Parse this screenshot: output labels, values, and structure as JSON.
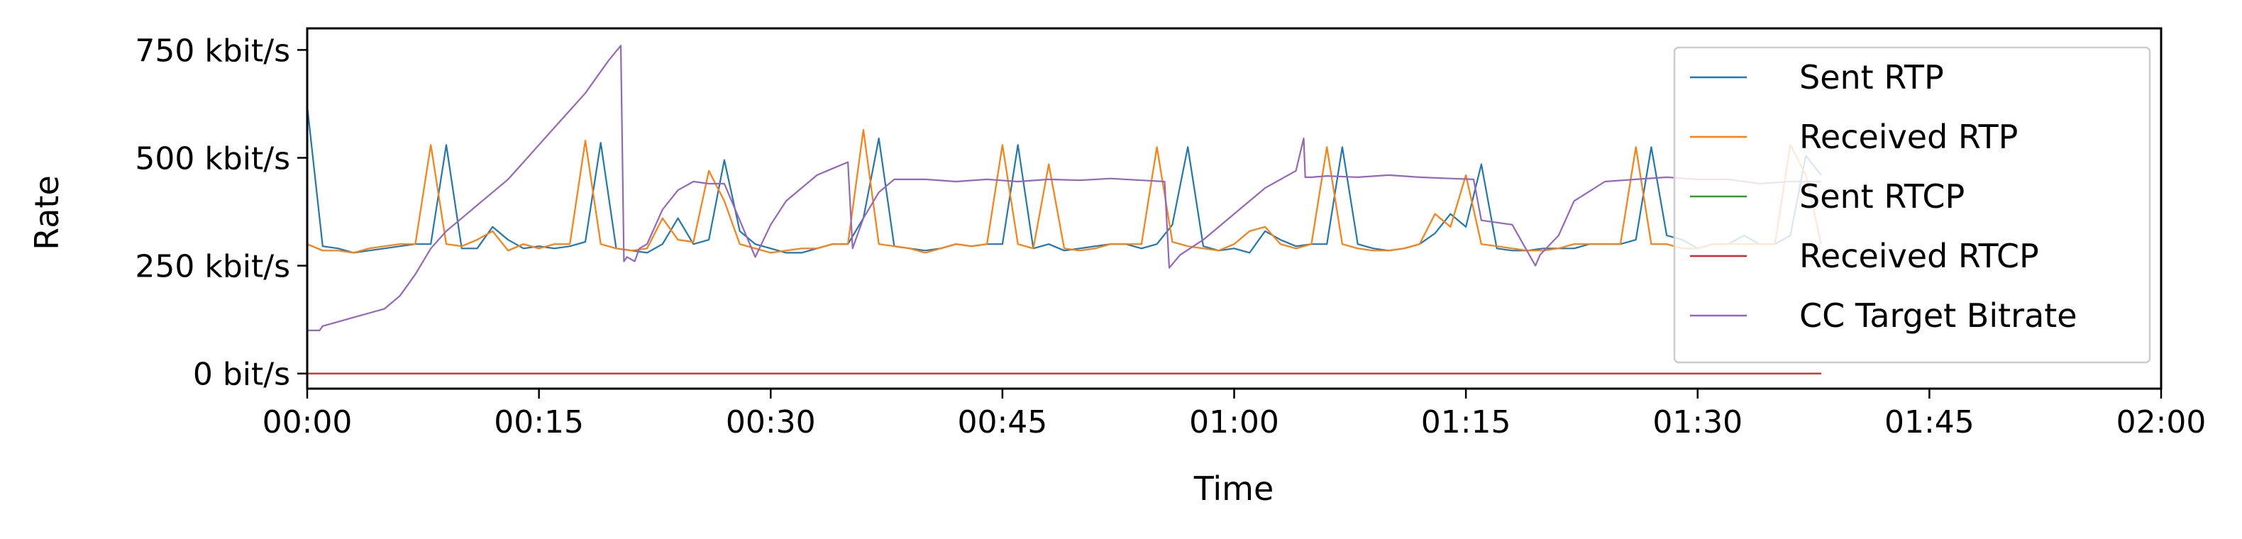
{
  "chart_data": {
    "type": "line",
    "title": "",
    "xlabel": "Time",
    "ylabel": "Rate",
    "xlim": [
      0,
      120
    ],
    "ylim": [
      -35,
      800
    ],
    "x_unit": "seconds",
    "y_unit": "kbit/s",
    "x_ticks": [
      {
        "value": 0,
        "label": "00:00"
      },
      {
        "value": 15,
        "label": "00:15"
      },
      {
        "value": 30,
        "label": "00:30"
      },
      {
        "value": 45,
        "label": "00:45"
      },
      {
        "value": 60,
        "label": "01:00"
      },
      {
        "value": 75,
        "label": "01:15"
      },
      {
        "value": 90,
        "label": "01:30"
      },
      {
        "value": 105,
        "label": "01:45"
      },
      {
        "value": 120,
        "label": "02:00"
      }
    ],
    "y_ticks": [
      {
        "value": 0,
        "label": "0 bit/s"
      },
      {
        "value": 250,
        "label": "250 kbit/s"
      },
      {
        "value": 500,
        "label": "500 kbit/s"
      },
      {
        "value": 750,
        "label": "750 kbit/s"
      }
    ],
    "grid": false,
    "legend_position": "top-right",
    "series": [
      {
        "name": "Sent RTP",
        "color": "#1f77b4",
        "x": [
          0,
          1,
          2,
          3,
          4,
          5,
          6,
          7,
          8,
          9,
          10,
          11,
          12,
          13,
          14,
          15,
          16,
          17,
          18,
          19,
          20,
          21,
          22,
          23,
          24,
          25,
          26,
          27,
          28,
          29,
          30,
          31,
          32,
          33,
          34,
          35,
          36,
          37,
          38,
          39,
          40,
          41,
          42,
          43,
          44,
          45,
          46,
          47,
          48,
          49,
          50,
          51,
          52,
          53,
          54,
          55,
          56,
          57,
          58,
          59,
          60,
          61,
          62,
          63,
          64,
          65,
          66,
          67,
          68,
          69,
          70,
          71,
          72,
          73,
          74,
          75,
          76,
          77,
          78,
          79,
          80,
          81,
          82,
          83,
          84,
          85,
          86,
          87,
          88,
          89,
          90,
          91,
          92,
          93,
          94,
          95,
          96,
          97,
          98
        ],
        "y": [
          620,
          295,
          290,
          280,
          285,
          290,
          295,
          300,
          300,
          530,
          290,
          290,
          340,
          310,
          290,
          295,
          290,
          295,
          305,
          535,
          290,
          285,
          280,
          300,
          360,
          300,
          310,
          495,
          330,
          300,
          290,
          280,
          280,
          290,
          300,
          300,
          360,
          545,
          295,
          290,
          285,
          290,
          300,
          295,
          300,
          300,
          530,
          290,
          300,
          285,
          290,
          295,
          300,
          300,
          290,
          300,
          345,
          525,
          295,
          285,
          290,
          280,
          330,
          310,
          295,
          300,
          300,
          525,
          300,
          290,
          285,
          290,
          300,
          325,
          370,
          340,
          485,
          290,
          285,
          285,
          290,
          290,
          290,
          300,
          300,
          300,
          310,
          525,
          320,
          310,
          290,
          300,
          300,
          320,
          300,
          300,
          320,
          505,
          460
        ]
      },
      {
        "name": "Received RTP",
        "color": "#ff7f0e",
        "x": [
          0,
          1,
          2,
          3,
          4,
          5,
          6,
          7,
          8,
          9,
          10,
          11,
          12,
          13,
          14,
          15,
          16,
          17,
          18,
          19,
          20,
          21,
          22,
          23,
          24,
          25,
          26,
          27,
          28,
          29,
          30,
          31,
          32,
          33,
          34,
          35,
          36,
          37,
          38,
          39,
          40,
          41,
          42,
          43,
          44,
          45,
          46,
          47,
          48,
          49,
          50,
          51,
          52,
          53,
          54,
          55,
          56,
          57,
          58,
          59,
          60,
          61,
          62,
          63,
          64,
          65,
          66,
          67,
          68,
          69,
          70,
          71,
          72,
          73,
          74,
          75,
          76,
          77,
          78,
          79,
          80,
          81,
          82,
          83,
          84,
          85,
          86,
          87,
          88,
          89,
          90,
          91,
          92,
          93,
          94,
          95,
          96,
          97,
          98
        ],
        "y": [
          300,
          285,
          285,
          280,
          290,
          295,
          300,
          300,
          530,
          300,
          295,
          310,
          330,
          285,
          300,
          290,
          300,
          300,
          540,
          300,
          290,
          285,
          290,
          360,
          310,
          305,
          470,
          400,
          300,
          290,
          280,
          285,
          290,
          290,
          300,
          300,
          565,
          300,
          295,
          290,
          280,
          290,
          300,
          295,
          300,
          530,
          300,
          290,
          485,
          290,
          285,
          290,
          300,
          300,
          300,
          525,
          305,
          295,
          290,
          285,
          300,
          330,
          340,
          300,
          290,
          300,
          525,
          300,
          290,
          285,
          285,
          290,
          300,
          370,
          340,
          460,
          300,
          295,
          290,
          285,
          285,
          290,
          300,
          300,
          300,
          300,
          525,
          300,
          300,
          290,
          290,
          300,
          300,
          300,
          300,
          300,
          530,
          460,
          300
        ]
      },
      {
        "name": "Sent RTCP",
        "color": "#2ca02c",
        "x": [
          0,
          98
        ],
        "y": [
          0,
          0
        ]
      },
      {
        "name": "Received RTCP",
        "color": "#d62728",
        "x": [
          0,
          98
        ],
        "y": [
          0,
          0
        ]
      },
      {
        "name": "CC Target Bitrate",
        "color": "#9467bd",
        "x": [
          0,
          0.8,
          1,
          2,
          3,
          4,
          5,
          6,
          7,
          8,
          9,
          10,
          11,
          12,
          13,
          14,
          15,
          16,
          17,
          18,
          19,
          19.5,
          20.3,
          20.5,
          20.7,
          21.2,
          21.5,
          22,
          23,
          24,
          25,
          26,
          27,
          28,
          29,
          30,
          31,
          32,
          33,
          34,
          35,
          35.3,
          35.5,
          36,
          37,
          38,
          40,
          42,
          44,
          46,
          48,
          50,
          52,
          54,
          55.5,
          55.8,
          56.5,
          58,
          60,
          62,
          64,
          64.5,
          64.6,
          65,
          66,
          68,
          70,
          72,
          74,
          75.5,
          76,
          78,
          79.5,
          79.8,
          81,
          82,
          84,
          86,
          88,
          90,
          92,
          94,
          96,
          98
        ],
        "y": [
          100,
          100,
          110,
          120,
          130,
          140,
          150,
          180,
          230,
          290,
          330,
          360,
          390,
          420,
          450,
          490,
          530,
          570,
          610,
          650,
          700,
          725,
          760,
          260,
          270,
          260,
          290,
          300,
          380,
          425,
          445,
          440,
          440,
          355,
          270,
          345,
          400,
          430,
          460,
          475,
          490,
          290,
          310,
          360,
          420,
          450,
          450,
          445,
          450,
          445,
          450,
          448,
          452,
          448,
          445,
          245,
          275,
          310,
          370,
          430,
          470,
          545,
          455,
          455,
          458,
          455,
          460,
          455,
          452,
          450,
          355,
          345,
          250,
          275,
          320,
          400,
          445,
          450,
          455,
          450,
          450,
          440,
          445,
          445
        ]
      }
    ]
  }
}
